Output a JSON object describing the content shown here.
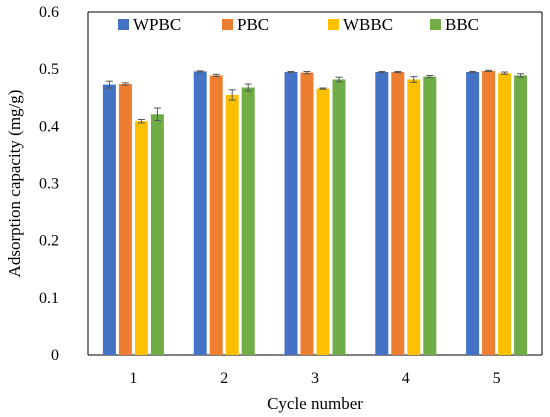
{
  "chart_data": {
    "type": "bar",
    "title": "",
    "xlabel": "Cycle number",
    "ylabel": "Adsorption capacity (mg/g)",
    "categories": [
      "1",
      "2",
      "3",
      "4",
      "5"
    ],
    "ylim": [
      0,
      0.6
    ],
    "yticks": [
      "0",
      "0.1",
      "0.2",
      "0.3",
      "0.4",
      "0.5",
      "0.6"
    ],
    "grid": false,
    "legend_position": "top",
    "error_bars": true,
    "series": [
      {
        "name": "WPBC",
        "color": "#4472C4",
        "values": [
          0.473,
          0.496,
          0.495,
          0.495,
          0.495
        ],
        "errors": [
          0.006,
          0.001,
          0.001,
          0.001,
          0.001
        ]
      },
      {
        "name": "PBC",
        "color": "#ED7D31",
        "values": [
          0.474,
          0.489,
          0.494,
          0.495,
          0.497
        ],
        "errors": [
          0.002,
          0.002,
          0.002,
          0.001,
          0.001
        ]
      },
      {
        "name": "WBBC",
        "color": "#FFC000",
        "values": [
          0.409,
          0.455,
          0.466,
          0.482,
          0.493
        ],
        "errors": [
          0.003,
          0.009,
          0.001,
          0.005,
          0.002
        ]
      },
      {
        "name": "BBC",
        "color": "#70AD47",
        "values": [
          0.421,
          0.468,
          0.482,
          0.487,
          0.489
        ],
        "errors": [
          0.011,
          0.006,
          0.004,
          0.002,
          0.003
        ]
      }
    ]
  }
}
